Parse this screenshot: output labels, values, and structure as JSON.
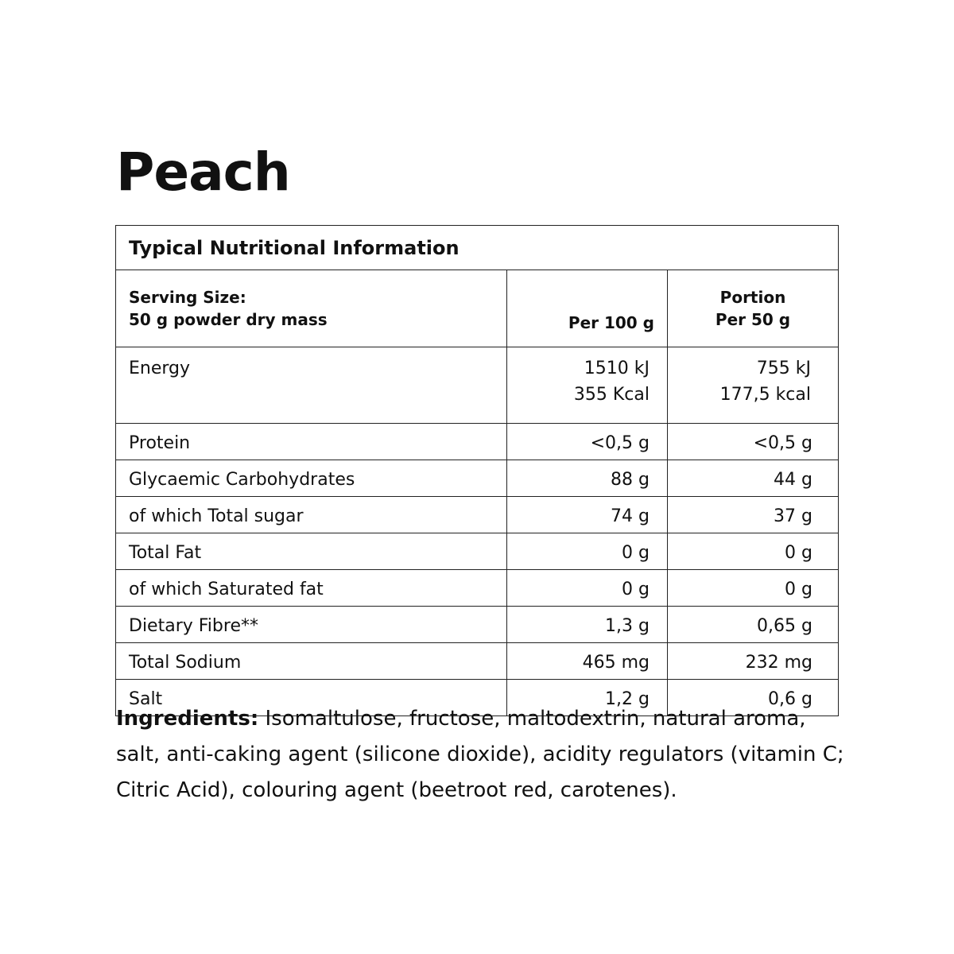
{
  "title": "Peach",
  "table": {
    "heading": "Typical Nutritional Information",
    "serving_label": "Serving Size:",
    "serving_value": "50 g powder dry mass",
    "col1": "Per 100 g",
    "col2_line1": "Portion",
    "col2_line2": "Per 50 g",
    "energy": {
      "label": "Energy",
      "per100_kj": "1510 kJ",
      "per100_kcal": "355 Kcal",
      "per50_kj": "755 kJ",
      "per50_kcal": "177,5 kcal"
    },
    "rows": [
      {
        "label": "Protein",
        "per100": "<0,5 g",
        "per50": "<0,5 g"
      },
      {
        "label": "Glycaemic Carbohydrates",
        "per100": "88 g",
        "per50": "44 g"
      },
      {
        "label": "of which Total sugar",
        "per100": "74 g",
        "per50": "37 g"
      },
      {
        "label": "Total Fat",
        "per100": "0 g",
        "per50": "0 g"
      },
      {
        "label": "of which Saturated fat",
        "per100": "0 g",
        "per50": "0 g"
      },
      {
        "label": "Dietary Fibre**",
        "per100": "1,3 g",
        "per50": "0,65 g"
      },
      {
        "label": "Total Sodium",
        "per100": "465 mg",
        "per50": "232 mg"
      },
      {
        "label": "Salt",
        "per100": "1,2 g",
        "per50": "0,6 g"
      }
    ]
  },
  "ingredients": {
    "label": "Ingredients:",
    "text": " Isomaltulose, fructose, maltodextrin, natural aroma, salt, anti-caking agent (silicone dioxide), acidity regulators (vitamin C; Citric Acid), colouring agent (beetroot red, carotenes)."
  }
}
